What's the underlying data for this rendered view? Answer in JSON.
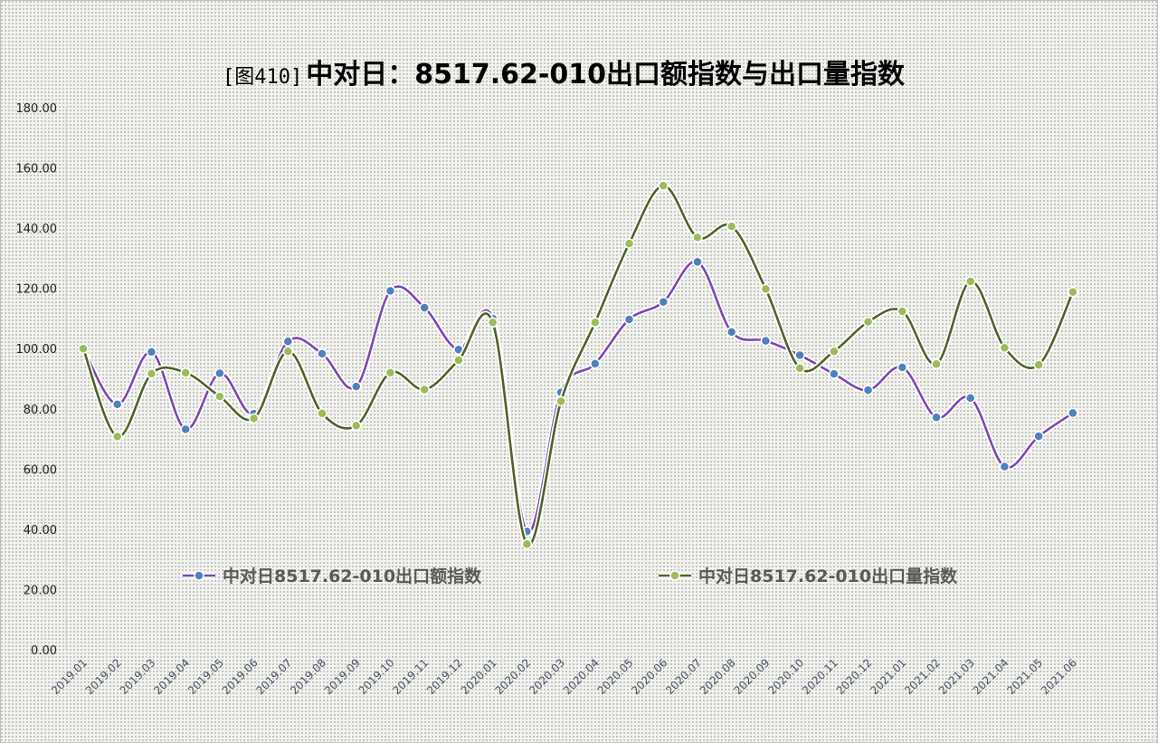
{
  "chart_data": {
    "type": "line",
    "title_prefix": "[图410]",
    "title_main": "中对日：8517.62-010出口额指数与出口量指数",
    "ylim": [
      0,
      180
    ],
    "y_ticks": [
      "0.00",
      "20.00",
      "40.00",
      "60.00",
      "80.00",
      "100.00",
      "120.00",
      "140.00",
      "160.00",
      "180.00"
    ],
    "categories": [
      "2019.01",
      "2019.02",
      "2019.03",
      "2019.04",
      "2019.05",
      "2019.06",
      "2019.07",
      "2019.08",
      "2019.09",
      "2019.10",
      "2019.11",
      "2019.12",
      "2020.01",
      "2020.02",
      "2020.03",
      "2020.04",
      "2020.05",
      "2020.06",
      "2020.07",
      "2020.08",
      "2020.09",
      "2020.10",
      "2020.11",
      "2020.12",
      "2021.01",
      "2021.02",
      "2021.03",
      "2021.04",
      "2021.05",
      "2021.06"
    ],
    "series": [
      {
        "name": "中对日8517.62-010出口额指数",
        "color": "#7e45b4",
        "marker_color": "#4f81bd",
        "values": [
          100.0,
          81.5,
          98.9,
          73.2,
          91.8,
          78.4,
          102.4,
          98.3,
          87.4,
          119.2,
          113.6,
          99.7,
          110.0,
          39.3,
          85.5,
          95.0,
          109.7,
          115.5,
          128.8,
          105.5,
          102.6,
          97.8,
          91.6,
          86.2,
          93.8,
          77.2,
          83.6,
          60.8,
          70.9,
          78.6
        ]
      },
      {
        "name": "中对日8517.62-010出口量指数",
        "color": "#4f6228",
        "marker_color": "#9bbb59",
        "values": [
          100.0,
          70.8,
          91.7,
          92.0,
          84.1,
          76.8,
          99.1,
          78.5,
          74.4,
          92.0,
          86.4,
          96.2,
          108.7,
          35.1,
          82.5,
          108.7,
          134.9,
          154.1,
          136.9,
          140.6,
          119.8,
          93.5,
          99.1,
          108.9,
          112.4,
          94.9,
          122.3,
          100.3,
          94.6,
          118.8
        ]
      }
    ]
  }
}
